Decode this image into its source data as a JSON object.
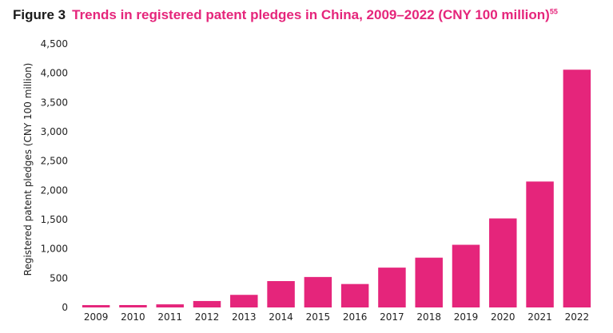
{
  "figure": {
    "label": "Figure 3",
    "title": "Trends in registered patent pledges in China, 2009–2022 (CNY 100 million)",
    "note_ref": "55"
  },
  "chart_data": {
    "type": "bar",
    "categories": [
      "2009",
      "2010",
      "2011",
      "2012",
      "2013",
      "2014",
      "2015",
      "2016",
      "2017",
      "2018",
      "2019",
      "2020",
      "2021",
      "2022"
    ],
    "values": [
      40,
      41,
      53,
      110,
      215,
      450,
      520,
      400,
      680,
      850,
      1070,
      1520,
      2150,
      4060
    ],
    "ylabel": "Registered patent pledges (CNY 100 million)",
    "xlabel": "",
    "ylim": [
      0,
      4500
    ],
    "yticks": [
      0,
      500,
      1000,
      1500,
      2000,
      2500,
      3000,
      3500,
      4000,
      4500
    ],
    "ytick_labels": [
      "0",
      "500",
      "1,000",
      "1,500",
      "2,000",
      "2,500",
      "3,000",
      "3,500",
      "4,000",
      "4,500"
    ],
    "grid": false,
    "bar_color": "#e5257b"
  }
}
